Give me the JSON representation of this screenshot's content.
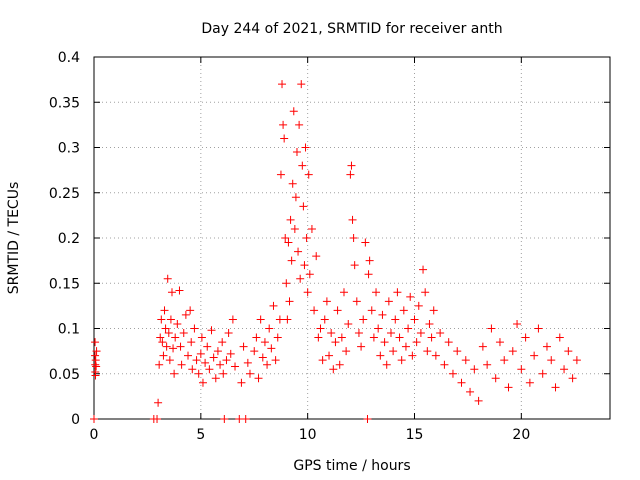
{
  "chart_data": {
    "type": "scatter",
    "title": "Day 244 of 2021, SRMTID for receiver anth",
    "xlabel": "GPS time / hours",
    "ylabel": "SRMTID / TECUs",
    "xlim": [
      0,
      24.15
    ],
    "ylim": [
      0,
      0.4
    ],
    "x_ticks": [
      0,
      5,
      10,
      15,
      20
    ],
    "x_tick_labels": [
      "0",
      "5",
      "10",
      "15",
      "20"
    ],
    "y_ticks": [
      0,
      0.05,
      0.1,
      0.15,
      0.2,
      0.25,
      0.3,
      0.35,
      0.4
    ],
    "y_tick_labels": [
      "0",
      "0.05",
      "0.1",
      "0.15",
      "0.2",
      "0.25",
      "0.3",
      "0.35",
      "0.4"
    ],
    "grid": true,
    "marker": "+",
    "color": "#ff0000",
    "series": [
      {
        "name": "SRMTID",
        "points": [
          [
            0.05,
            0.085
          ],
          [
            0.05,
            0.07
          ],
          [
            0.06,
            0.06
          ],
          [
            0.06,
            0.052
          ],
          [
            0.07,
            0.048
          ],
          [
            0.08,
            0.065
          ],
          [
            0.1,
            0.058
          ],
          [
            0.12,
            0.075
          ],
          [
            0.0,
            0.0
          ],
          [
            2.8,
            0.0
          ],
          [
            2.95,
            0.0
          ],
          [
            3.0,
            0.018
          ],
          [
            3.05,
            0.06
          ],
          [
            3.1,
            0.09
          ],
          [
            3.15,
            0.11
          ],
          [
            3.2,
            0.085
          ],
          [
            3.25,
            0.07
          ],
          [
            3.3,
            0.12
          ],
          [
            3.35,
            0.1
          ],
          [
            3.4,
            0.08
          ],
          [
            3.45,
            0.155
          ],
          [
            3.5,
            0.095
          ],
          [
            3.55,
            0.065
          ],
          [
            3.6,
            0.11
          ],
          [
            3.65,
            0.14
          ],
          [
            3.7,
            0.078
          ],
          [
            3.75,
            0.05
          ],
          [
            3.8,
            0.09
          ],
          [
            3.9,
            0.105
          ],
          [
            4.0,
            0.142
          ],
          [
            4.05,
            0.08
          ],
          [
            4.1,
            0.06
          ],
          [
            4.2,
            0.095
          ],
          [
            4.3,
            0.115
          ],
          [
            4.4,
            0.07
          ],
          [
            4.5,
            0.12
          ],
          [
            4.55,
            0.085
          ],
          [
            4.6,
            0.055
          ],
          [
            4.7,
            0.1
          ],
          [
            4.8,
            0.065
          ],
          [
            4.9,
            0.05
          ],
          [
            5.0,
            0.072
          ],
          [
            5.05,
            0.09
          ],
          [
            5.1,
            0.04
          ],
          [
            5.2,
            0.062
          ],
          [
            5.3,
            0.08
          ],
          [
            5.4,
            0.055
          ],
          [
            5.5,
            0.098
          ],
          [
            5.6,
            0.068
          ],
          [
            5.7,
            0.045
          ],
          [
            5.8,
            0.075
          ],
          [
            5.9,
            0.06
          ],
          [
            6.0,
            0.085
          ],
          [
            6.05,
            0.05
          ],
          [
            6.1,
            0.0
          ],
          [
            6.2,
            0.065
          ],
          [
            6.3,
            0.095
          ],
          [
            6.4,
            0.072
          ],
          [
            6.5,
            0.11
          ],
          [
            6.6,
            0.058
          ],
          [
            6.8,
            0.0
          ],
          [
            6.9,
            0.04
          ],
          [
            7.0,
            0.08
          ],
          [
            7.1,
            0.0
          ],
          [
            7.2,
            0.062
          ],
          [
            7.3,
            0.05
          ],
          [
            7.5,
            0.075
          ],
          [
            7.6,
            0.09
          ],
          [
            7.7,
            0.045
          ],
          [
            7.8,
            0.11
          ],
          [
            7.9,
            0.068
          ],
          [
            8.0,
            0.085
          ],
          [
            8.1,
            0.06
          ],
          [
            8.2,
            0.1
          ],
          [
            8.3,
            0.078
          ],
          [
            8.4,
            0.125
          ],
          [
            8.5,
            0.065
          ],
          [
            8.6,
            0.09
          ],
          [
            8.7,
            0.11
          ],
          [
            8.75,
            0.27
          ],
          [
            8.8,
            0.37
          ],
          [
            8.85,
            0.325
          ],
          [
            8.9,
            0.31
          ],
          [
            8.95,
            0.2
          ],
          [
            9.0,
            0.15
          ],
          [
            9.05,
            0.11
          ],
          [
            9.1,
            0.195
          ],
          [
            9.15,
            0.13
          ],
          [
            9.2,
            0.22
          ],
          [
            9.25,
            0.175
          ],
          [
            9.3,
            0.26
          ],
          [
            9.35,
            0.34
          ],
          [
            9.4,
            0.21
          ],
          [
            9.45,
            0.245
          ],
          [
            9.5,
            0.295
          ],
          [
            9.55,
            0.185
          ],
          [
            9.6,
            0.325
          ],
          [
            9.65,
            0.155
          ],
          [
            9.7,
            0.37
          ],
          [
            9.75,
            0.28
          ],
          [
            9.8,
            0.235
          ],
          [
            9.85,
            0.17
          ],
          [
            9.9,
            0.3
          ],
          [
            9.95,
            0.2
          ],
          [
            10.0,
            0.14
          ],
          [
            10.05,
            0.27
          ],
          [
            10.1,
            0.16
          ],
          [
            10.2,
            0.21
          ],
          [
            10.3,
            0.12
          ],
          [
            10.4,
            0.18
          ],
          [
            10.5,
            0.09
          ],
          [
            10.6,
            0.1
          ],
          [
            10.7,
            0.065
          ],
          [
            10.8,
            0.11
          ],
          [
            10.9,
            0.13
          ],
          [
            11.0,
            0.07
          ],
          [
            11.1,
            0.095
          ],
          [
            11.2,
            0.055
          ],
          [
            11.3,
            0.085
          ],
          [
            11.4,
            0.12
          ],
          [
            11.5,
            0.06
          ],
          [
            11.6,
            0.09
          ],
          [
            11.7,
            0.14
          ],
          [
            11.8,
            0.075
          ],
          [
            11.9,
            0.105
          ],
          [
            12.0,
            0.27
          ],
          [
            12.05,
            0.28
          ],
          [
            12.1,
            0.22
          ],
          [
            12.15,
            0.2
          ],
          [
            12.2,
            0.17
          ],
          [
            12.3,
            0.13
          ],
          [
            12.4,
            0.095
          ],
          [
            12.5,
            0.08
          ],
          [
            12.6,
            0.11
          ],
          [
            12.7,
            0.195
          ],
          [
            12.8,
            0.0
          ],
          [
            12.85,
            0.16
          ],
          [
            12.9,
            0.175
          ],
          [
            13.0,
            0.12
          ],
          [
            13.1,
            0.09
          ],
          [
            13.2,
            0.14
          ],
          [
            13.3,
            0.1
          ],
          [
            13.4,
            0.07
          ],
          [
            13.5,
            0.115
          ],
          [
            13.6,
            0.085
          ],
          [
            13.7,
            0.06
          ],
          [
            13.8,
            0.13
          ],
          [
            13.9,
            0.095
          ],
          [
            14.0,
            0.075
          ],
          [
            14.1,
            0.11
          ],
          [
            14.2,
            0.14
          ],
          [
            14.3,
            0.09
          ],
          [
            14.4,
            0.065
          ],
          [
            14.5,
            0.12
          ],
          [
            14.6,
            0.08
          ],
          [
            14.7,
            0.1
          ],
          [
            14.8,
            0.135
          ],
          [
            14.9,
            0.07
          ],
          [
            15.0,
            0.11
          ],
          [
            15.1,
            0.085
          ],
          [
            15.2,
            0.125
          ],
          [
            15.3,
            0.095
          ],
          [
            15.4,
            0.165
          ],
          [
            15.5,
            0.14
          ],
          [
            15.6,
            0.075
          ],
          [
            15.7,
            0.105
          ],
          [
            15.8,
            0.09
          ],
          [
            15.9,
            0.12
          ],
          [
            16.0,
            0.07
          ],
          [
            16.2,
            0.095
          ],
          [
            16.4,
            0.06
          ],
          [
            16.6,
            0.085
          ],
          [
            16.8,
            0.05
          ],
          [
            17.0,
            0.075
          ],
          [
            17.2,
            0.04
          ],
          [
            17.4,
            0.065
          ],
          [
            17.6,
            0.03
          ],
          [
            17.8,
            0.055
          ],
          [
            18.0,
            0.02
          ],
          [
            18.2,
            0.08
          ],
          [
            18.4,
            0.06
          ],
          [
            18.6,
            0.1
          ],
          [
            18.8,
            0.045
          ],
          [
            19.0,
            0.085
          ],
          [
            19.2,
            0.065
          ],
          [
            19.4,
            0.035
          ],
          [
            19.6,
            0.075
          ],
          [
            19.8,
            0.105
          ],
          [
            20.0,
            0.055
          ],
          [
            20.2,
            0.09
          ],
          [
            20.4,
            0.04
          ],
          [
            20.6,
            0.07
          ],
          [
            20.8,
            0.1
          ],
          [
            21.0,
            0.05
          ],
          [
            21.2,
            0.08
          ],
          [
            21.4,
            0.065
          ],
          [
            21.6,
            0.035
          ],
          [
            21.8,
            0.09
          ],
          [
            22.0,
            0.055
          ],
          [
            22.2,
            0.075
          ],
          [
            22.4,
            0.045
          ],
          [
            22.6,
            0.065
          ]
        ]
      }
    ]
  }
}
